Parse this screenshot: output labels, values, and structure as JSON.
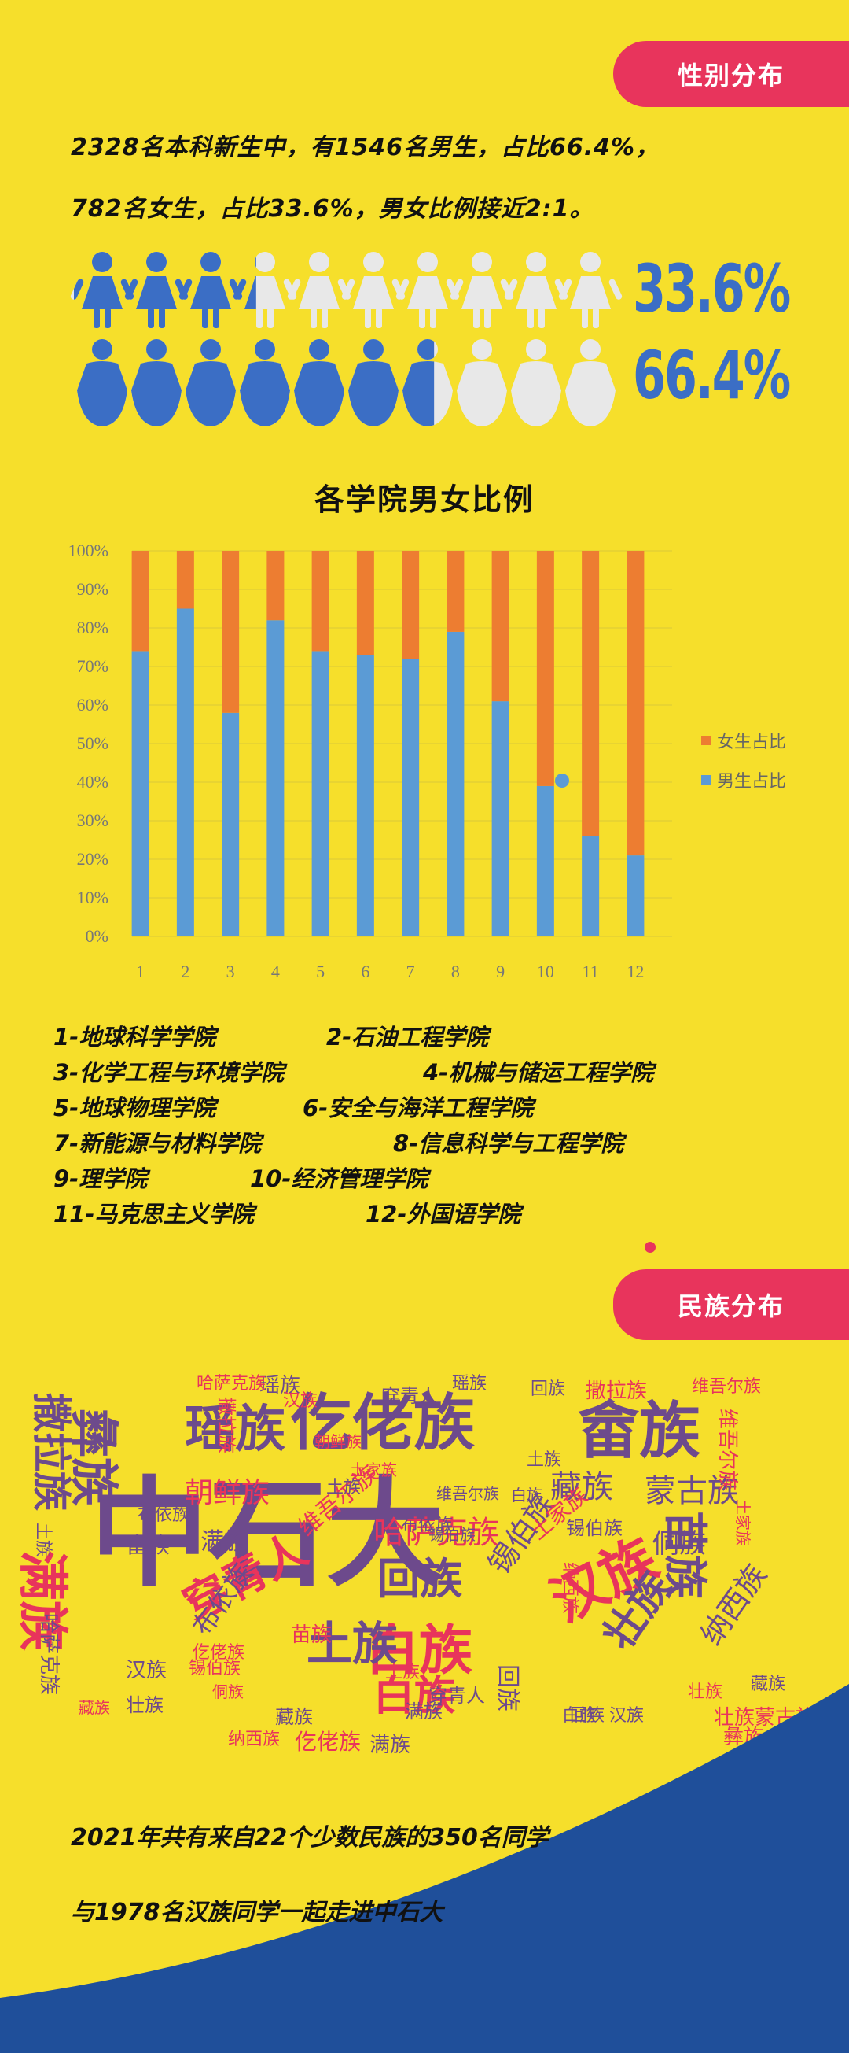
{
  "gender_section": {
    "badge": "性别分布",
    "line1": "2328名本科新生中，有1546名男生，占比66.4%，",
    "line2": "782名女生，占比33.6%，男女比例接近2:1。",
    "female_pct_label": "33.6%",
    "male_pct_label": "66.4%",
    "female_share": 0.336,
    "male_share": 0.664,
    "icon_count_per_row": 10
  },
  "colors": {
    "background": "#f6df2b",
    "badge": "#e8345c",
    "male_blue": "#3b6ec5",
    "bar_blue": "#5b9bd5",
    "bar_orange": "#ed7d31",
    "icon_faded": "#e8e8e8"
  },
  "chart_data": {
    "type": "bar",
    "stacked": true,
    "title": "各学院男女比例",
    "categories": [
      "1",
      "2",
      "3",
      "4",
      "5",
      "6",
      "7",
      "8",
      "9",
      "10",
      "11",
      "12"
    ],
    "series": [
      {
        "name": "男生占比",
        "color": "#5b9bd5",
        "values": [
          74,
          85,
          58,
          82,
          74,
          73,
          72,
          79,
          61,
          39,
          26,
          21
        ]
      },
      {
        "name": "女生占比",
        "color": "#ed7d31",
        "values": [
          26,
          15,
          42,
          18,
          26,
          27,
          28,
          21,
          39,
          61,
          74,
          79
        ]
      }
    ],
    "y_ticks": [
      "0%",
      "10%",
      "20%",
      "30%",
      "40%",
      "50%",
      "60%",
      "70%",
      "80%",
      "90%",
      "100%"
    ],
    "ylim": [
      0,
      100
    ],
    "legend_position": "right"
  },
  "colleges": [
    "1-地球科学学院",
    "2-石油工程学院",
    "3-化学工程与环境学院",
    "4-机械与储运工程学院",
    "5-地球物理学院",
    "6-安全与海洋工程学院",
    "7-新能源与材料学院",
    "8-信息科学与工程学院",
    "9-理学院",
    "10-经济管理学院",
    "11-马克思主义学院",
    "12-外国语学院"
  ],
  "ethnic_section": {
    "badge": "民族分布",
    "footer_line1": "2021年共有来自22个少数民族的350名同学",
    "footer_line2": "与1978名汉族同学一起走进中石大"
  },
  "word_cloud": [
    {
      "text": "中石大",
      "color": "#6d4a8c"
    },
    {
      "text": "仡佬族",
      "color": "#6d4a8c"
    },
    {
      "text": "畲族",
      "color": "#6d4a8c"
    },
    {
      "text": "瑶族",
      "color": "#6d4a8c"
    },
    {
      "text": "彝族",
      "color": "#6d4a8c"
    },
    {
      "text": "撒拉族",
      "color": "#6d4a8c"
    },
    {
      "text": "满族",
      "color": "#e8345c"
    },
    {
      "text": "穿青人",
      "color": "#e8345c"
    },
    {
      "text": "白族",
      "color": "#e8345c"
    },
    {
      "text": "汉族",
      "color": "#e8345c"
    },
    {
      "text": "土族",
      "color": "#6d4a8c"
    },
    {
      "text": "壮族",
      "color": "#6d4a8c"
    },
    {
      "text": "苗族",
      "color": "#6d4a8c"
    },
    {
      "text": "蒙古族",
      "color": "#6d4a8c"
    },
    {
      "text": "藏族",
      "color": "#6d4a8c"
    },
    {
      "text": "朝鲜族",
      "color": "#e8345c"
    },
    {
      "text": "哈萨克族",
      "color": "#e8345c"
    },
    {
      "text": "回族",
      "color": "#6d4a8c"
    },
    {
      "text": "锡伯族",
      "color": "#6d4a8c"
    },
    {
      "text": "纳西族",
      "color": "#6d4a8c"
    },
    {
      "text": "侗族",
      "color": "#6d4a8c"
    },
    {
      "text": "维吾尔族",
      "color": "#e8345c"
    },
    {
      "text": "土家族",
      "color": "#e8345c"
    },
    {
      "text": "布依族",
      "color": "#6d4a8c"
    },
    {
      "text": "彝族",
      "color": "#e8345c"
    },
    {
      "text": "满族",
      "color": "#6d4a8c"
    },
    {
      "text": "畲族",
      "color": "#6d4a8c"
    },
    {
      "text": "白族",
      "color": "#e8345c"
    },
    {
      "text": "撒拉族",
      "color": "#e8345c"
    },
    {
      "text": "穿青人",
      "color": "#6d4a8c"
    },
    {
      "text": "回族",
      "color": "#6d4a8c"
    },
    {
      "text": "汉族",
      "color": "#6d4a8c"
    },
    {
      "text": "壮族",
      "color": "#6d4a8c"
    },
    {
      "text": "纳西族",
      "color": "#e8345c"
    },
    {
      "text": "仡佬族",
      "color": "#e8345c"
    },
    {
      "text": "藏族",
      "color": "#6d4a8c"
    },
    {
      "text": "满族",
      "color": "#6d4a8c"
    },
    {
      "text": "苗族",
      "color": "#e8345c"
    },
    {
      "text": "土族",
      "color": "#e8345c"
    },
    {
      "text": "瑶族",
      "color": "#6d4a8c"
    },
    {
      "text": "土家族",
      "color": "#e8345c"
    },
    {
      "text": "穿青人",
      "color": "#6d4a8c"
    },
    {
      "text": "瑶族",
      "color": "#6d4a8c"
    },
    {
      "text": "撒拉族",
      "color": "#e8345c"
    },
    {
      "text": "回族",
      "color": "#6d4a8c"
    },
    {
      "text": "维吾尔族",
      "color": "#e8345c"
    },
    {
      "text": "白族",
      "color": "#6d4a8c"
    },
    {
      "text": "土族",
      "color": "#6d4a8c"
    },
    {
      "text": "维吾尔族",
      "color": "#6d4a8c"
    },
    {
      "text": "布依族",
      "color": "#6d4a8c"
    },
    {
      "text": "锡伯族",
      "color": "#6d4a8c"
    },
    {
      "text": "哈萨克族",
      "color": "#6d4a8c"
    },
    {
      "text": "布依族",
      "color": "#6d4a8c"
    },
    {
      "text": "汉族",
      "color": "#6d4a8c"
    },
    {
      "text": "侗族",
      "color": "#e8345c"
    },
    {
      "text": "壮族蒙古族",
      "color": "#e8345c"
    },
    {
      "text": "白族",
      "color": "#6d4a8c"
    },
    {
      "text": "藏族",
      "color": "#6d4a8c"
    },
    {
      "text": "土家族",
      "color": "#e8345c"
    },
    {
      "text": "锡伯族",
      "color": "#6d4a8c"
    },
    {
      "text": "锡伯族",
      "color": "#e8345c"
    },
    {
      "text": "土族",
      "color": "#6d4a8c"
    },
    {
      "text": "满族",
      "color": "#6d4a8c"
    },
    {
      "text": "仡佬族",
      "color": "#e8345c"
    },
    {
      "text": "土族",
      "color": "#6d4a8c"
    },
    {
      "text": "哈萨克族",
      "color": "#e8345c"
    },
    {
      "text": "回族",
      "color": "#6d4a8c"
    },
    {
      "text": "汉族",
      "color": "#e8345c"
    },
    {
      "text": "藏族",
      "color": "#e8345c"
    },
    {
      "text": "壮族",
      "color": "#e8345c"
    },
    {
      "text": "纳西族",
      "color": "#e8345c"
    },
    {
      "text": "维吾尔族",
      "color": "#e8345c"
    },
    {
      "text": "朝鲜族",
      "color": "#e8345c"
    }
  ]
}
